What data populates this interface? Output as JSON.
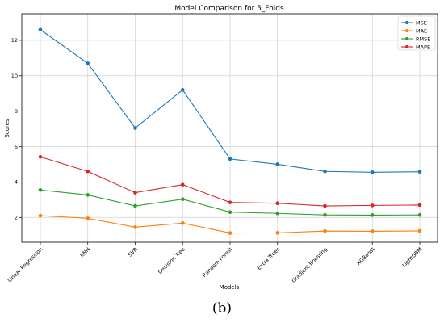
{
  "caption": "(b)",
  "chart_data": {
    "type": "line",
    "title": "Model Comparison for 5_Folds",
    "xlabel": "Models",
    "ylabel": "Scores",
    "categories": [
      "Linear Regression",
      "KNN",
      "SVR",
      "Decision Tree",
      "Random Forest",
      "Extra Trees",
      "Gradient Boosting",
      "XGBoost",
      "LightGBM"
    ],
    "ylim": [
      0.6,
      13.5
    ],
    "yticks": [
      2,
      4,
      6,
      8,
      10,
      12
    ],
    "grid": true,
    "legend_position": "top-right",
    "series": [
      {
        "name": "MSE",
        "color": "#1f77b4",
        "values": [
          12.6,
          10.7,
          7.05,
          9.2,
          5.3,
          5.0,
          4.6,
          4.55,
          4.58
        ]
      },
      {
        "name": "MAE",
        "color": "#ff7f0e",
        "values": [
          2.1,
          1.95,
          1.45,
          1.68,
          1.12,
          1.13,
          1.23,
          1.22,
          1.24
        ]
      },
      {
        "name": "RMSE",
        "color": "#2ca02c",
        "values": [
          3.55,
          3.27,
          2.65,
          3.03,
          2.3,
          2.23,
          2.14,
          2.13,
          2.14
        ]
      },
      {
        "name": "MAPE",
        "color": "#d62728",
        "values": [
          5.42,
          4.6,
          3.4,
          3.85,
          2.85,
          2.8,
          2.65,
          2.68,
          2.7
        ]
      }
    ]
  }
}
